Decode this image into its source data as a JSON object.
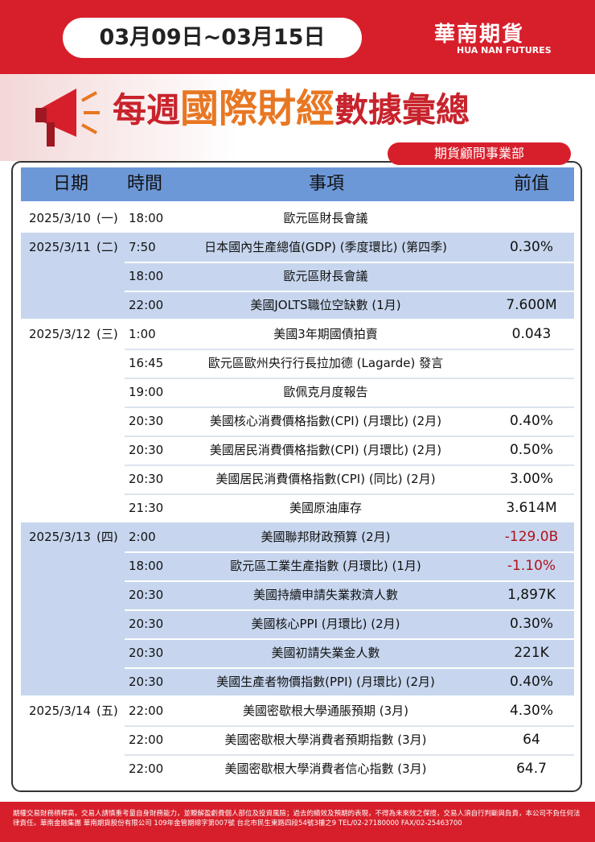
{
  "header": {
    "date_range": "03月09日~03月15日",
    "brand": "華南期貨",
    "brand_en": "HUA NAN FUTURES",
    "title_parts": [
      "每週",
      "國際財經",
      "數據彙總"
    ],
    "department": "期貨顧問事業部"
  },
  "table": {
    "columns": [
      "日期",
      "時間",
      "事項",
      "前值"
    ],
    "groups": [
      {
        "date": "2025/3/10",
        "weekday": "(一)",
        "rows": [
          {
            "time": "18:00",
            "event": "歐元區財長會議"
          }
        ]
      },
      {
        "date": "2025/3/11",
        "weekday": "(二)",
        "rows": [
          {
            "time": "7:50",
            "event": "日本國內生產總值(GDP) (季度環比) (第四季)",
            "previous": "0.30%"
          },
          {
            "time": "18:00",
            "event": "歐元區財長會議"
          },
          {
            "time": "22:00",
            "event": "美國JOLTS職位空缺數 (1月)",
            "previous": "7.600M"
          }
        ]
      },
      {
        "date": "2025/3/12",
        "weekday": "(三)",
        "rows": [
          {
            "time": "1:00",
            "event": "美國3年期國債拍賣",
            "previous": "0.043"
          },
          {
            "time": "16:45",
            "event": "歐元區歐州央行行長拉加德 (Lagarde) 發言"
          },
          {
            "time": "19:00",
            "event": "歐佩克月度報告"
          },
          {
            "time": "20:30",
            "event": "美國核心消費價格指數(CPI) (月環比) (2月)",
            "previous": "0.40%"
          },
          {
            "time": "20:30",
            "event": "美國居民消費價格指數(CPI) (月環比) (2月)",
            "previous": "0.50%"
          },
          {
            "time": "20:30",
            "event": "美國居民消費價格指數(CPI) (同比) (2月)",
            "previous": "3.00%"
          },
          {
            "time": "21:30",
            "event": "美國原油庫存",
            "previous": "3.614M"
          }
        ]
      },
      {
        "date": "2025/3/13",
        "weekday": "(四)",
        "rows": [
          {
            "time": "2:00",
            "event": "美國聯邦財政預算 (2月)",
            "previous": "-129.0B"
          },
          {
            "time": "18:00",
            "event": "歐元區工業生產指數 (月環比) (1月)",
            "previous": "-1.10%"
          },
          {
            "time": "20:30",
            "event": "美國持續申請失業救濟人數",
            "previous": "1,897K"
          },
          {
            "time": "20:30",
            "event": "美國核心PPI (月環比) (2月)",
            "previous": "0.30%"
          },
          {
            "time": "20:30",
            "event": "美國初請失業金人數",
            "previous": "221K"
          },
          {
            "time": "20:30",
            "event": "美國生產者物價指數(PPI) (月環比) (2月)",
            "previous": "0.40%"
          }
        ]
      },
      {
        "date": "2025/3/14",
        "weekday": "(五)",
        "rows": [
          {
            "time": "22:00",
            "event": "美國密歇根大學通脹預期 (3月)",
            "previous": "4.30%"
          },
          {
            "time": "22:00",
            "event": "美國密歇根大學消費者預期指數 (3月)",
            "previous": "64"
          },
          {
            "time": "22:00",
            "event": "美國密歇根大學消費者信心指數 (3月)",
            "previous": "64.7"
          }
        ]
      }
    ]
  },
  "footer": {
    "disclaimer": "期權交易財務槓桿高，交易人請慎重考量自身財務能力，並瞭解盈虧費個人部位及投資風險；過去的績效及預期的表現，不得為未來效之保證，交易人須自行判斷與負責，本公司不負任何法律責任。華南金融集團 華南期貨股份有限公司 109年金管期總字第007號 台北市民生東路四段54號3樓之9 TEL/02-27180000 FAX/02-25463700"
  }
}
